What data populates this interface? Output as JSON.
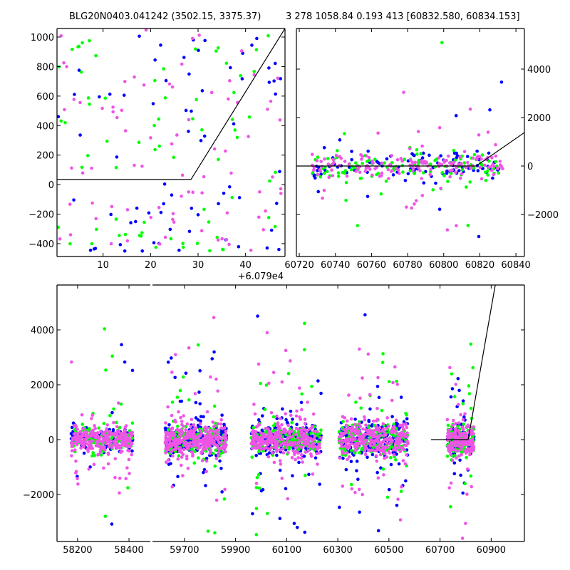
{
  "chart_data": [
    {
      "id": "top-left",
      "type": "scatter",
      "title": "BLG20N0403.041242 (3502.15, 3375.37)",
      "xlabel": "",
      "ylabel": "",
      "xlim": [
        0.3,
        48.3
      ],
      "ylim": [
        -487,
        1058
      ],
      "xticks": [
        10,
        20,
        30,
        40
      ],
      "xtick_labels": [
        "10",
        "20",
        "30",
        "40"
      ],
      "yticks": [
        -400,
        -200,
        0,
        200,
        400,
        600,
        800,
        1000
      ],
      "ytick_labels": [
        "−400",
        "−200",
        "0",
        "200",
        "400",
        "600",
        "800",
        "1000"
      ],
      "ytick_side": "left",
      "offset_text": "+6.079e4",
      "model_line": [
        [
          0.3,
          35
        ],
        [
          28.5,
          35
        ],
        [
          48.3,
          1058
        ]
      ],
      "clusters": [
        {
          "x_range": [
            0.5,
            47.5
          ],
          "center": 150,
          "sigma": 350,
          "n": [
            70,
            70,
            80
          ]
        }
      ]
    },
    {
      "id": "top-right",
      "type": "scatter",
      "title": "3 278 1058.84 0.193 413 [60832.580, 60834.153]",
      "xlim": [
        60718.4,
        60844.7
      ],
      "ylim": [
        -3735,
        5676
      ],
      "xticks": [
        60720,
        60740,
        60760,
        60780,
        60800,
        60820,
        60840
      ],
      "xtick_labels": [
        "60720",
        "60740",
        "60760",
        "60780",
        "60800",
        "60820",
        "60840"
      ],
      "yticks": [
        -2000,
        0,
        2000,
        4000
      ],
      "ytick_labels": [
        "−2000",
        "0",
        "2000",
        "4000"
      ],
      "ytick_side": "right",
      "model_line": [
        [
          60718.4,
          0
        ],
        [
          60818,
          0
        ],
        [
          60844.7,
          1380
        ]
      ],
      "clusters": [
        {
          "x_range": [
            60727,
            60833
          ],
          "center": 0,
          "sigma": 280,
          "n": [
            110,
            120,
            160
          ]
        }
      ]
    },
    {
      "id": "bottom",
      "type": "scatter",
      "broken_x": true,
      "xlim_segments": [
        [
          58120,
          58483
        ],
        [
          59575,
          61030
        ]
      ],
      "ylim": [
        -3714,
        5636
      ],
      "xticks": [
        58200,
        58400,
        59700,
        59900,
        60100,
        60300,
        60500,
        60700,
        60900
      ],
      "xtick_labels": [
        "58200",
        "58400",
        "59700",
        "59900",
        "60100",
        "60300",
        "60500",
        "60700",
        "60900"
      ],
      "yticks": [
        -2000,
        0,
        2000,
        4000
      ],
      "ytick_labels": [
        "−2000",
        "0",
        "2000",
        "4000"
      ],
      "ytick_side": "left",
      "model_line": [
        [
          60665,
          0
        ],
        [
          60810,
          0
        ],
        [
          60916,
          5636
        ]
      ],
      "clusters": [
        {
          "x_range": [
            58175,
            58415
          ],
          "center": 0,
          "sigma": 260,
          "n": [
            110,
            110,
            260
          ]
        },
        {
          "x_range": [
            59625,
            59865
          ],
          "center": 0,
          "sigma": 300,
          "n": [
            220,
            150,
            300
          ]
        },
        {
          "x_range": [
            59960,
            60235
          ],
          "center": 0,
          "sigma": 300,
          "n": [
            230,
            170,
            300
          ]
        },
        {
          "x_range": [
            60305,
            60575
          ],
          "center": 0,
          "sigma": 320,
          "n": [
            220,
            170,
            300
          ]
        },
        {
          "x_range": [
            60728,
            60833
          ],
          "center": 0,
          "sigma": 300,
          "n": [
            110,
            120,
            160
          ]
        }
      ]
    }
  ],
  "series_colors": {
    "band1": "#0000ff",
    "band2": "#00ff00",
    "band3": "#ee55e6"
  }
}
